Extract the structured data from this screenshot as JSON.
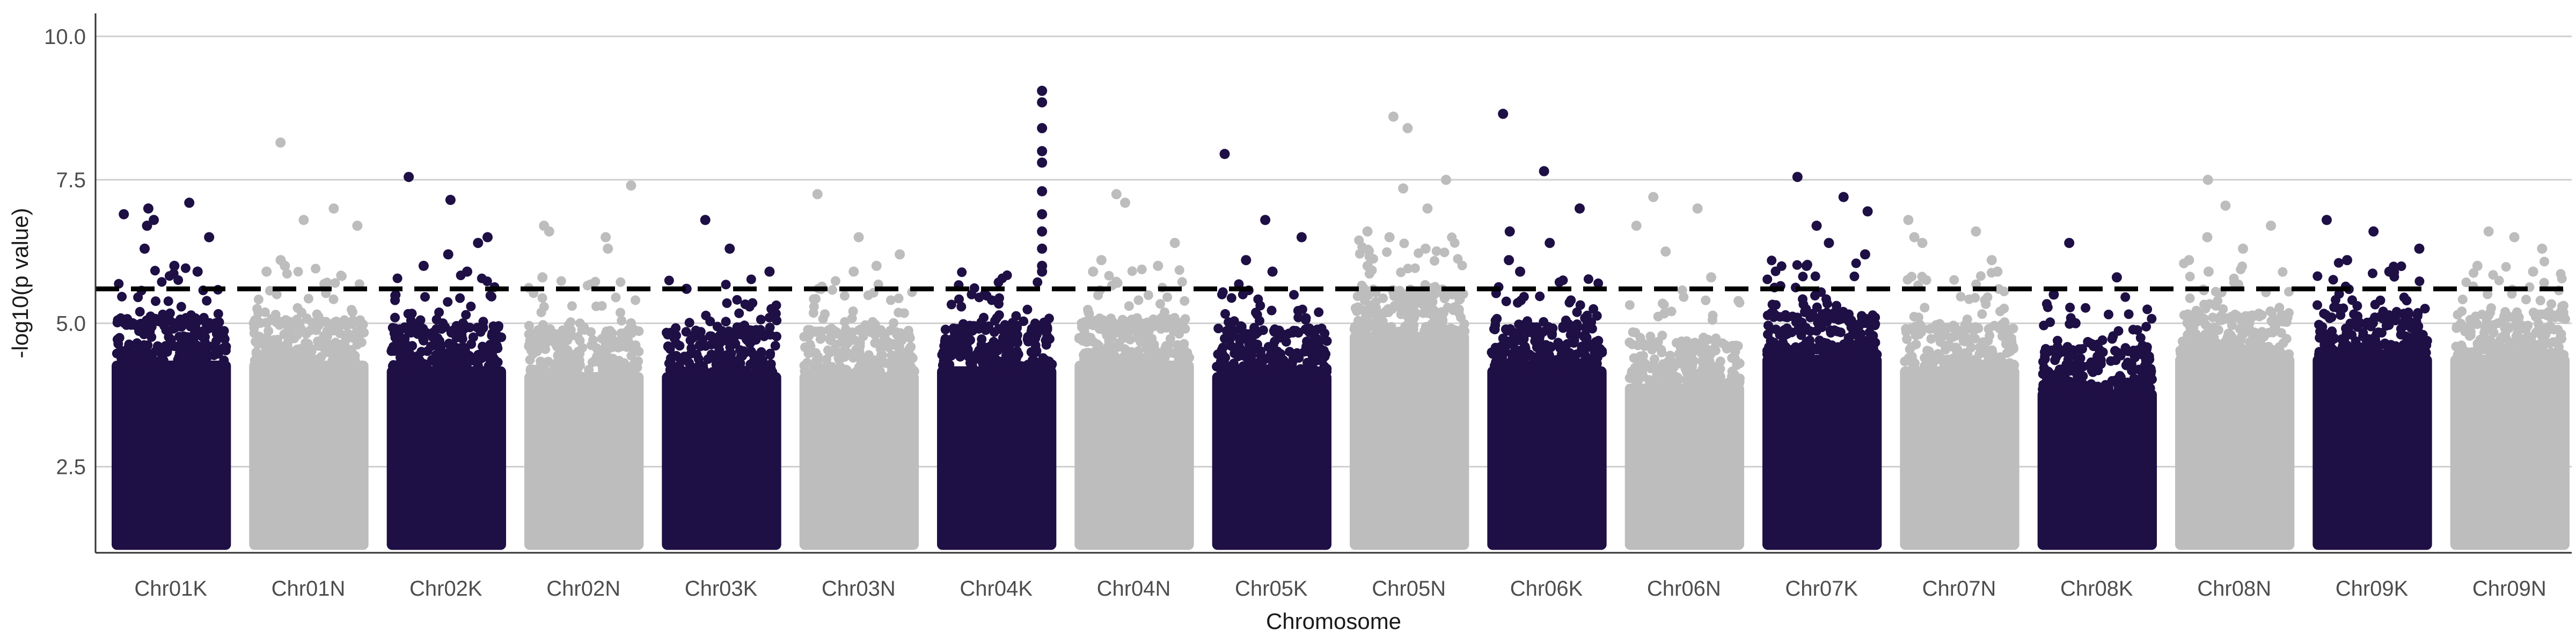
{
  "chart_data": {
    "type": "scatter",
    "subtype": "manhattan",
    "title": "",
    "xlabel": "Chromosome",
    "ylabel": "-log10(p value)",
    "ylim": [
      1.0,
      10.4
    ],
    "yticks": [
      2.5,
      5.0,
      7.5,
      10.0
    ],
    "ytick_labels": [
      "2.5",
      "5.0",
      "7.5",
      "10.0"
    ],
    "grid": "horizontal major lines",
    "legend": "none",
    "threshold": {
      "value": 5.6,
      "style": "dashed",
      "color": "#000000"
    },
    "colors": {
      "odd": "#1e0f45",
      "even": "#bdbdbd"
    },
    "chromosomes": [
      {
        "name": "Chr01K",
        "ceiling": 4.7,
        "top_points": [
          6.7,
          7.1,
          6.5,
          7.0,
          6.0,
          6.9,
          6.8,
          5.9,
          6.3
        ]
      },
      {
        "name": "Chr01N",
        "ceiling": 4.7,
        "top_points": [
          8.15,
          6.8,
          6.7,
          6.0,
          7.0,
          5.9,
          6.1
        ]
      },
      {
        "name": "Chr02K",
        "ceiling": 4.6,
        "top_points": [
          7.55,
          7.15,
          6.4,
          6.0,
          5.9,
          6.5,
          6.2
        ]
      },
      {
        "name": "Chr02N",
        "ceiling": 4.5,
        "top_points": [
          6.7,
          6.5,
          7.4,
          6.6,
          6.3,
          5.8
        ]
      },
      {
        "name": "Chr03K",
        "ceiling": 4.5,
        "top_points": [
          6.8,
          6.3,
          5.9,
          5.6
        ]
      },
      {
        "name": "Chr03N",
        "ceiling": 4.5,
        "top_points": [
          7.25,
          6.5,
          6.2,
          5.9,
          6.0
        ]
      },
      {
        "name": "Chr04K",
        "ceiling": 4.6,
        "top_points": [
          9.05,
          8.85,
          8.4,
          8.0,
          7.8,
          7.3,
          6.9,
          6.6,
          6.3,
          6.0,
          5.9
        ]
      },
      {
        "name": "Chr04N",
        "ceiling": 4.7,
        "top_points": [
          7.25,
          7.1,
          6.4,
          6.1,
          6.0,
          5.9
        ]
      },
      {
        "name": "Chr05K",
        "ceiling": 4.5,
        "top_points": [
          7.95,
          6.8,
          6.5,
          6.1,
          5.9
        ]
      },
      {
        "name": "Chr05N",
        "ceiling": 5.2,
        "top_points": [
          8.6,
          8.4,
          7.5,
          7.35,
          7.0,
          6.6,
          6.5,
          6.3,
          6.0
        ]
      },
      {
        "name": "Chr06K",
        "ceiling": 4.6,
        "top_points": [
          8.65,
          7.65,
          7.0,
          6.6,
          6.4,
          6.1,
          5.9
        ]
      },
      {
        "name": "Chr06N",
        "ceiling": 4.3,
        "top_points": [
          7.2,
          7.0,
          6.7,
          6.25,
          5.8
        ]
      },
      {
        "name": "Chr07K",
        "ceiling": 4.8,
        "top_points": [
          7.55,
          7.2,
          6.95,
          6.7,
          6.4,
          6.2,
          6.0
        ]
      },
      {
        "name": "Chr07N",
        "ceiling": 4.6,
        "top_points": [
          6.8,
          6.6,
          6.5,
          6.4,
          6.1,
          5.9
        ]
      },
      {
        "name": "Chr08K",
        "ceiling": 4.2,
        "top_points": [
          6.4,
          5.8,
          5.5,
          5.0
        ]
      },
      {
        "name": "Chr08N",
        "ceiling": 4.8,
        "top_points": [
          7.5,
          7.05,
          6.7,
          6.5,
          6.3,
          6.1,
          5.9
        ]
      },
      {
        "name": "Chr09K",
        "ceiling": 4.8,
        "top_points": [
          6.8,
          6.6,
          6.3,
          6.1,
          5.9
        ]
      },
      {
        "name": "Chr09N",
        "ceiling": 4.8,
        "top_points": [
          6.6,
          6.5,
          6.3,
          6.0,
          5.9
        ]
      }
    ]
  }
}
